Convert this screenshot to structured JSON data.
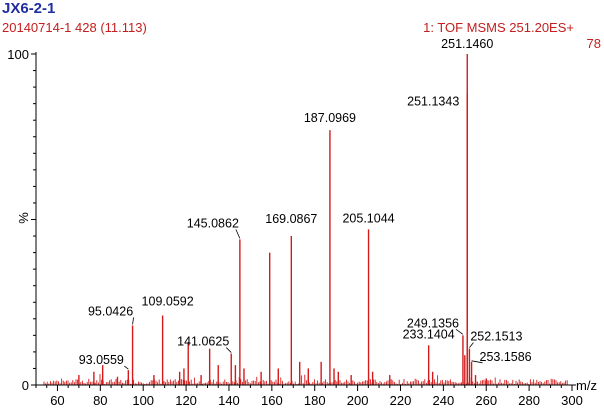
{
  "header": {
    "sample_name": "JX6-2-1",
    "run_info": "20140714-1 428 (11.113)",
    "function_info": "1: TOF MSMS 251.20ES+",
    "max_count": "78"
  },
  "colors": {
    "header_title": "#1f2f9f",
    "peaks": "#d61a1a",
    "axis": "#000000"
  },
  "chart_data": {
    "type": "bar",
    "title": "",
    "xlabel": "m/z",
    "ylabel": "%",
    "xlim": [
      50,
      300
    ],
    "ylim": [
      0,
      100
    ],
    "x_ticks": [
      60,
      80,
      100,
      120,
      140,
      160,
      180,
      200,
      220,
      240,
      260,
      280,
      300
    ],
    "y_ticks": [
      0,
      100
    ],
    "y_tick_labels": [
      "0",
      "100"
    ],
    "grid": false,
    "series": [
      {
        "peaks": [
          {
            "x": 70.0,
            "y": 3.0
          },
          {
            "x": 77.0,
            "y": 4.0
          },
          {
            "x": 81.1,
            "y": 6.0
          },
          {
            "x": 88.0,
            "y": 2.5
          },
          {
            "x": 93.0559,
            "y": 4.5
          },
          {
            "x": 95.0426,
            "y": 18.0
          },
          {
            "x": 105.0,
            "y": 3.0
          },
          {
            "x": 109.0592,
            "y": 21.0
          },
          {
            "x": 117.0,
            "y": 4.0
          },
          {
            "x": 119.0,
            "y": 5.0
          },
          {
            "x": 121.0,
            "y": 13.0
          },
          {
            "x": 127.0,
            "y": 3.0
          },
          {
            "x": 131.0,
            "y": 11.0
          },
          {
            "x": 135.0,
            "y": 6.0
          },
          {
            "x": 141.0625,
            "y": 9.5
          },
          {
            "x": 143.0,
            "y": 6.0
          },
          {
            "x": 145.0862,
            "y": 44.0
          },
          {
            "x": 147.0,
            "y": 5.0
          },
          {
            "x": 155.0,
            "y": 4.0
          },
          {
            "x": 159.0,
            "y": 40.0
          },
          {
            "x": 163.0,
            "y": 5.0
          },
          {
            "x": 169.0867,
            "y": 45.0
          },
          {
            "x": 173.0,
            "y": 7.0
          },
          {
            "x": 177.0,
            "y": 5.0
          },
          {
            "x": 183.0,
            "y": 7.0
          },
          {
            "x": 187.0969,
            "y": 77.0
          },
          {
            "x": 189.0,
            "y": 5.0
          },
          {
            "x": 191.0,
            "y": 4.0
          },
          {
            "x": 197.0,
            "y": 3.0
          },
          {
            "x": 205.1044,
            "y": 47.0
          },
          {
            "x": 207.0,
            "y": 4.0
          },
          {
            "x": 215.0,
            "y": 3.0
          },
          {
            "x": 233.1404,
            "y": 12.0
          },
          {
            "x": 235.0,
            "y": 4.0
          },
          {
            "x": 249.1356,
            "y": 15.0
          },
          {
            "x": 250.0,
            "y": 9.0
          },
          {
            "x": 251.1343,
            "y": 88.0
          },
          {
            "x": 251.146,
            "y": 100.0
          },
          {
            "x": 252.1513,
            "y": 11.0
          },
          {
            "x": 253.1586,
            "y": 7.0
          },
          {
            "x": 255.0,
            "y": 3.0
          },
          {
            "x": 260.0,
            "y": 2.0
          }
        ]
      }
    ],
    "annotations": [
      {
        "label": "251.1460",
        "x": 251.146,
        "y": 100.0
      },
      {
        "label": "251.1343",
        "x": 251.1343,
        "y": 88.0
      },
      {
        "label": "187.0969",
        "x": 187.0969,
        "y": 77.0
      },
      {
        "label": "145.0862",
        "x": 145.0862,
        "y": 44.0
      },
      {
        "label": "169.0867",
        "x": 169.0867,
        "y": 45.0
      },
      {
        "label": "205.1044",
        "x": 205.1044,
        "y": 47.0
      },
      {
        "label": "95.0426",
        "x": 95.0426,
        "y": 18.0
      },
      {
        "label": "109.0592",
        "x": 109.0592,
        "y": 21.0
      },
      {
        "label": "141.0625",
        "x": 141.0625,
        "y": 9.5
      },
      {
        "label": "93.0559",
        "x": 93.0559,
        "y": 4.5
      },
      {
        "label": "233.1404",
        "x": 233.1404,
        "y": 12.0
      },
      {
        "label": "249.1356",
        "x": 249.1356,
        "y": 15.0
      },
      {
        "label": "252.1513",
        "x": 252.1513,
        "y": 11.0
      },
      {
        "label": "253.1586",
        "x": 253.1586,
        "y": 7.0
      }
    ]
  }
}
